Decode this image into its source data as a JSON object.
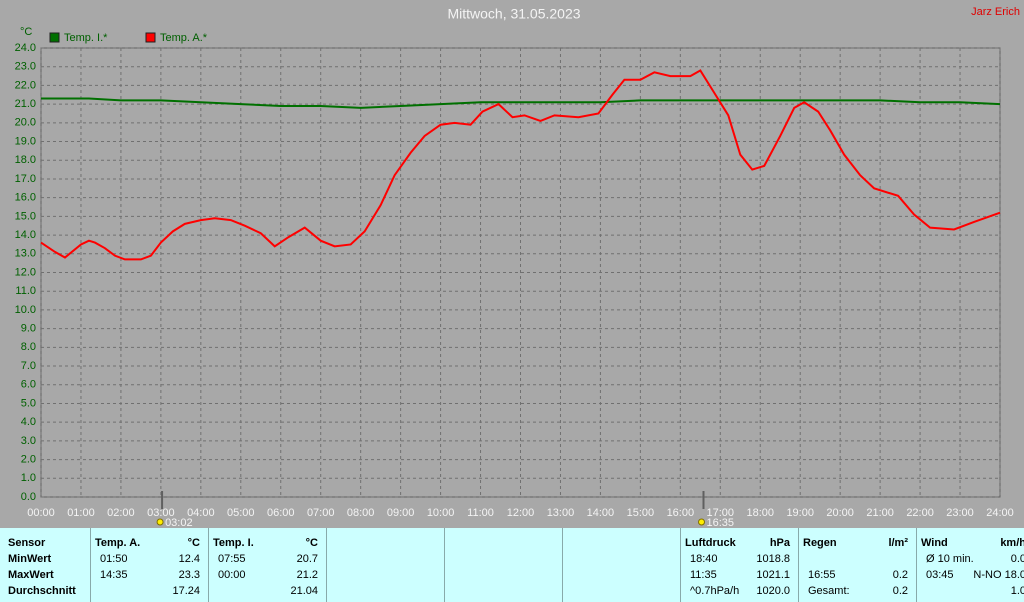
{
  "chart_data": {
    "type": "line",
    "title": "Mittwoch, 31.05.2023",
    "author": "Jarz Erich",
    "y_label": "°C",
    "grid": true,
    "xlim": [
      0,
      24
    ],
    "ylim": [
      0,
      24
    ],
    "xticks": [
      {
        "value": 0,
        "label": "00:00"
      },
      {
        "value": 1,
        "label": "01:00"
      },
      {
        "value": 2,
        "label": "02:00"
      },
      {
        "value": 3,
        "label": "03:00"
      },
      {
        "value": 4,
        "label": "04:00"
      },
      {
        "value": 5,
        "label": "05:00"
      },
      {
        "value": 6,
        "label": "06:00"
      },
      {
        "value": 7,
        "label": "07:00"
      },
      {
        "value": 8,
        "label": "08:00"
      },
      {
        "value": 9,
        "label": "09:00"
      },
      {
        "value": 10,
        "label": "10:00"
      },
      {
        "value": 11,
        "label": "11:00"
      },
      {
        "value": 12,
        "label": "12:00"
      },
      {
        "value": 13,
        "label": "13:00"
      },
      {
        "value": 14,
        "label": "14:00"
      },
      {
        "value": 15,
        "label": "15:00"
      },
      {
        "value": 16,
        "label": "16:00"
      },
      {
        "value": 17,
        "label": "17:00"
      },
      {
        "value": 18,
        "label": "18:00"
      },
      {
        "value": 19,
        "label": "19:00"
      },
      {
        "value": 20,
        "label": "20:00"
      },
      {
        "value": 21,
        "label": "21:00"
      },
      {
        "value": 22,
        "label": "22:00"
      },
      {
        "value": 23,
        "label": "23:00"
      },
      {
        "value": 24,
        "label": "24:00"
      }
    ],
    "yticks": [
      {
        "value": 0,
        "label": "0.0"
      },
      {
        "value": 1,
        "label": "1.0"
      },
      {
        "value": 2,
        "label": "2.0"
      },
      {
        "value": 3,
        "label": "3.0"
      },
      {
        "value": 4,
        "label": "4.0"
      },
      {
        "value": 5,
        "label": "5.0"
      },
      {
        "value": 6,
        "label": "6.0"
      },
      {
        "value": 7,
        "label": "7.0"
      },
      {
        "value": 8,
        "label": "8.0"
      },
      {
        "value": 9,
        "label": "9.0"
      },
      {
        "value": 10,
        "label": "10.0"
      },
      {
        "value": 11,
        "label": "11.0"
      },
      {
        "value": 12,
        "label": "12.0"
      },
      {
        "value": 13,
        "label": "13.0"
      },
      {
        "value": 14,
        "label": "14.0"
      },
      {
        "value": 15,
        "label": "15.0"
      },
      {
        "value": 16,
        "label": "16.0"
      },
      {
        "value": 17,
        "label": "17.0"
      },
      {
        "value": 18,
        "label": "18.0"
      },
      {
        "value": 19,
        "label": "19.0"
      },
      {
        "value": 20,
        "label": "20.0"
      },
      {
        "value": 21,
        "label": "21.0"
      },
      {
        "value": 22,
        "label": "22.0"
      },
      {
        "value": 23,
        "label": "23.0"
      },
      {
        "value": 24,
        "label": "24.0"
      }
    ],
    "sun_events": [
      {
        "value": 3.03,
        "label": "03:02"
      },
      {
        "value": 16.58,
        "label": "16:35"
      }
    ],
    "series": [
      {
        "name": "Temp. I.*",
        "color": "#007000",
        "x": [
          0,
          1.2,
          2,
          3,
          4,
          5,
          6,
          7,
          8,
          9,
          10,
          11,
          12,
          13,
          14,
          15,
          16,
          17,
          18,
          19,
          20,
          21,
          22,
          23,
          24
        ],
        "values": [
          21.3,
          21.3,
          21.2,
          21.2,
          21.1,
          21.0,
          20.9,
          20.9,
          20.8,
          20.9,
          21.0,
          21.1,
          21.1,
          21.1,
          21.1,
          21.2,
          21.2,
          21.2,
          21.2,
          21.2,
          21.2,
          21.2,
          21.1,
          21.1,
          21.0
        ]
      },
      {
        "name": "Temp. A.*",
        "color": "#ff0000",
        "x": [
          0,
          0.35,
          0.6,
          1.0,
          1.2,
          1.35,
          1.6,
          1.85,
          2.1,
          2.5,
          2.75,
          3.0,
          3.3,
          3.6,
          4.0,
          4.35,
          4.75,
          5.1,
          5.5,
          5.85,
          6.2,
          6.6,
          7.0,
          7.35,
          7.75,
          8.1,
          8.5,
          8.85,
          9.25,
          9.6,
          10.0,
          10.35,
          10.75,
          11.05,
          11.45,
          11.8,
          12.1,
          12.5,
          12.85,
          13.45,
          13.95,
          14.3,
          14.6,
          15.0,
          15.35,
          15.75,
          16.25,
          16.5,
          16.85,
          17.2,
          17.5,
          17.8,
          18.1,
          18.5,
          18.85,
          19.1,
          19.45,
          19.75,
          20.1,
          20.5,
          20.85,
          21.45,
          21.85,
          22.25,
          22.85,
          23.35,
          24.0
        ],
        "values": [
          13.6,
          13.1,
          12.8,
          13.5,
          13.7,
          13.6,
          13.3,
          12.9,
          12.7,
          12.7,
          12.9,
          13.6,
          14.2,
          14.6,
          14.8,
          14.9,
          14.8,
          14.5,
          14.1,
          13.4,
          13.9,
          14.4,
          13.7,
          13.4,
          13.5,
          14.2,
          15.6,
          17.2,
          18.4,
          19.3,
          19.9,
          20.0,
          19.9,
          20.6,
          21.0,
          20.3,
          20.4,
          20.1,
          20.4,
          20.3,
          20.5,
          21.5,
          22.3,
          22.3,
          22.7,
          22.5,
          22.5,
          22.8,
          21.6,
          20.4,
          18.3,
          17.5,
          17.7,
          19.3,
          20.8,
          21.1,
          20.6,
          19.6,
          18.3,
          17.2,
          16.5,
          16.1,
          15.1,
          14.4,
          14.3,
          14.7,
          15.2
        ]
      }
    ]
  },
  "table": {
    "row_labels": [
      "Sensor",
      "MinWert",
      "MaxWert",
      "Durchschnitt"
    ],
    "groups": [
      {
        "title": "Temp. A.",
        "unit": "°C",
        "rows": [
          [
            "01:50",
            "12.4"
          ],
          [
            "14:35",
            "23.3"
          ],
          [
            null,
            "17.24"
          ]
        ]
      },
      {
        "title": "Temp. I.",
        "unit": "°C",
        "rows": [
          [
            "07:55",
            "20.7"
          ],
          [
            "00:00",
            "21.2"
          ],
          [
            null,
            "21.04"
          ]
        ]
      },
      {
        "title": "Luftdruck",
        "unit": "hPa",
        "rows": [
          [
            "18:40",
            "1018.8"
          ],
          [
            "11:35",
            "1021.1"
          ],
          [
            "^0.7hPa/h",
            "1020.0"
          ]
        ]
      },
      {
        "title": "Regen",
        "unit": "l/m²",
        "rows": [
          [
            null,
            null
          ],
          [
            "16:55",
            "0.2"
          ],
          [
            "Gesamt:",
            "0.2"
          ]
        ]
      },
      {
        "title": "Wind",
        "unit": "km/h",
        "rows": [
          [
            "Ø 10 min.",
            "0.0"
          ],
          [
            "03:45",
            "N-NO 18.0"
          ],
          [
            null,
            "1.0"
          ]
        ]
      }
    ]
  }
}
